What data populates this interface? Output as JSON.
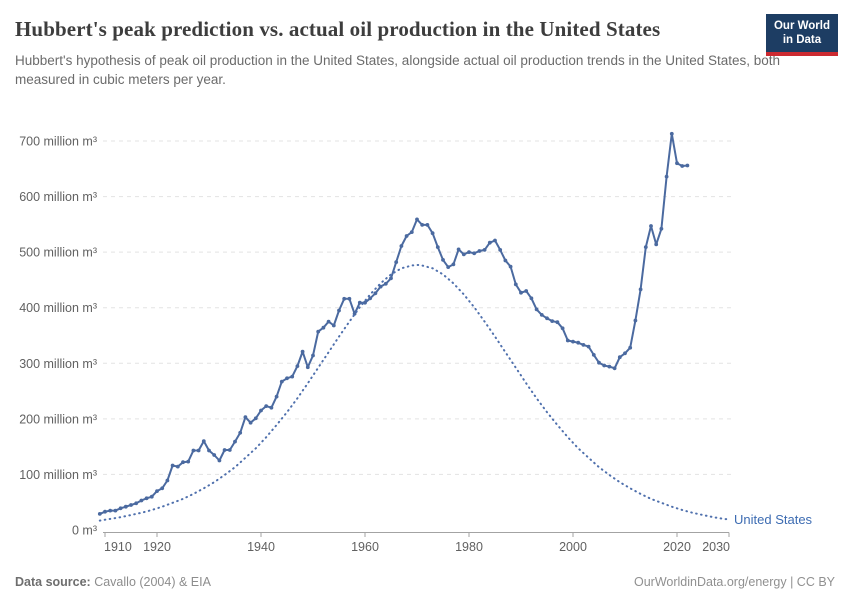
{
  "header": {
    "title": "Hubbert's peak prediction vs. actual oil production in the United States",
    "subtitle": "Hubbert's hypothesis of peak oil production in the United States, alongside actual oil production trends in the United States, both measured in cubic meters per year."
  },
  "logo": {
    "line1": "Our World",
    "line2": "in Data",
    "bg_color": "#1d3d63",
    "bar_color": "#cc2a31"
  },
  "footer": {
    "source_label": "Data source:",
    "source_value": " Cavallo (2004) & EIA",
    "right_text": "OurWorldinData.org/energy | CC BY"
  },
  "chart_data": {
    "type": "line",
    "title": "Hubbert's peak prediction vs. actual oil production in the United States",
    "unit": "cubic meters per year",
    "grid": "horizontal-dashed",
    "legend_position": "end-of-line-label",
    "end_label": "United States",
    "end_label_color": "#3d6cb2",
    "x_scale": {
      "min": 1910,
      "max": 2030
    },
    "y_scale": {
      "min": 0,
      "max": 700
    },
    "x_ticks": [
      1910,
      1920,
      1940,
      1960,
      1980,
      2000,
      2020,
      2030
    ],
    "y_ticks": [
      {
        "value": 0,
        "label": "0 m³"
      },
      {
        "value": 100,
        "label": "100 million m³"
      },
      {
        "value": 200,
        "label": "200 million m³"
      },
      {
        "value": 300,
        "label": "300 million m³"
      },
      {
        "value": 400,
        "label": "400 million m³"
      },
      {
        "value": 500,
        "label": "500 million m³"
      },
      {
        "value": 600,
        "label": "600 million m³"
      },
      {
        "value": 700,
        "label": "700 million m³"
      }
    ],
    "series": [
      {
        "name": "United States actual oil production",
        "style": "solid-markers",
        "color": "#4b6aa0",
        "points": [
          [
            1909,
            29
          ],
          [
            1910,
            33
          ],
          [
            1911,
            35
          ],
          [
            1912,
            35
          ],
          [
            1913,
            39
          ],
          [
            1914,
            42
          ],
          [
            1915,
            45
          ],
          [
            1916,
            48
          ],
          [
            1917,
            53
          ],
          [
            1918,
            57
          ],
          [
            1919,
            60
          ],
          [
            1920,
            70
          ],
          [
            1921,
            75
          ],
          [
            1922,
            89
          ],
          [
            1923,
            116
          ],
          [
            1924,
            114
          ],
          [
            1925,
            122
          ],
          [
            1926,
            123
          ],
          [
            1927,
            143
          ],
          [
            1928,
            143
          ],
          [
            1929,
            160
          ],
          [
            1930,
            143
          ],
          [
            1931,
            135
          ],
          [
            1932,
            125
          ],
          [
            1933,
            144
          ],
          [
            1934,
            144
          ],
          [
            1935,
            159
          ],
          [
            1936,
            175
          ],
          [
            1937,
            203
          ],
          [
            1938,
            193
          ],
          [
            1939,
            201
          ],
          [
            1940,
            215
          ],
          [
            1941,
            223
          ],
          [
            1942,
            220
          ],
          [
            1943,
            240
          ],
          [
            1944,
            267
          ],
          [
            1945,
            273
          ],
          [
            1946,
            276
          ],
          [
            1947,
            295
          ],
          [
            1948,
            321
          ],
          [
            1949,
            293
          ],
          [
            1950,
            314
          ],
          [
            1951,
            357
          ],
          [
            1952,
            364
          ],
          [
            1953,
            375
          ],
          [
            1954,
            368
          ],
          [
            1955,
            395
          ],
          [
            1956,
            416
          ],
          [
            1957,
            416
          ],
          [
            1958,
            389
          ],
          [
            1959,
            409
          ],
          [
            1960,
            409
          ],
          [
            1961,
            417
          ],
          [
            1962,
            426
          ],
          [
            1963,
            438
          ],
          [
            1964,
            443
          ],
          [
            1965,
            453
          ],
          [
            1966,
            482
          ],
          [
            1967,
            511
          ],
          [
            1968,
            529
          ],
          [
            1969,
            536
          ],
          [
            1970,
            559
          ],
          [
            1971,
            549
          ],
          [
            1972,
            549
          ],
          [
            1973,
            534
          ],
          [
            1974,
            509
          ],
          [
            1975,
            486
          ],
          [
            1976,
            473
          ],
          [
            1977,
            478
          ],
          [
            1978,
            505
          ],
          [
            1979,
            496
          ],
          [
            1980,
            500
          ],
          [
            1981,
            498
          ],
          [
            1982,
            502
          ],
          [
            1983,
            504
          ],
          [
            1984,
            517
          ],
          [
            1985,
            521
          ],
          [
            1986,
            504
          ],
          [
            1987,
            485
          ],
          [
            1988,
            474
          ],
          [
            1989,
            442
          ],
          [
            1990,
            427
          ],
          [
            1991,
            430
          ],
          [
            1992,
            417
          ],
          [
            1993,
            397
          ],
          [
            1994,
            387
          ],
          [
            1995,
            381
          ],
          [
            1996,
            376
          ],
          [
            1997,
            374
          ],
          [
            1998,
            363
          ],
          [
            1999,
            341
          ],
          [
            2000,
            339
          ],
          [
            2001,
            337
          ],
          [
            2002,
            333
          ],
          [
            2003,
            330
          ],
          [
            2004,
            315
          ],
          [
            2005,
            301
          ],
          [
            2006,
            296
          ],
          [
            2007,
            294
          ],
          [
            2008,
            291
          ],
          [
            2009,
            311
          ],
          [
            2010,
            318
          ],
          [
            2011,
            328
          ],
          [
            2012,
            377
          ],
          [
            2013,
            433
          ],
          [
            2014,
            509
          ],
          [
            2015,
            547
          ],
          [
            2016,
            514
          ],
          [
            2017,
            542
          ],
          [
            2018,
            636
          ],
          [
            2019,
            713
          ],
          [
            2020,
            660
          ],
          [
            2021,
            655
          ],
          [
            2022,
            656
          ]
        ]
      },
      {
        "name": "Hubbert's peak prediction",
        "style": "dotted",
        "color": "#4f70ad",
        "points": [
          [
            1909,
            17
          ],
          [
            1911,
            20
          ],
          [
            1913,
            23
          ],
          [
            1915,
            27
          ],
          [
            1917,
            31
          ],
          [
            1919,
            36
          ],
          [
            1921,
            42
          ],
          [
            1923,
            49
          ],
          [
            1925,
            56
          ],
          [
            1927,
            65
          ],
          [
            1929,
            75
          ],
          [
            1931,
            86
          ],
          [
            1933,
            99
          ],
          [
            1935,
            113
          ],
          [
            1937,
            130
          ],
          [
            1939,
            147
          ],
          [
            1941,
            167
          ],
          [
            1943,
            189
          ],
          [
            1945,
            212
          ],
          [
            1947,
            237
          ],
          [
            1949,
            264
          ],
          [
            1951,
            292
          ],
          [
            1953,
            320
          ],
          [
            1955,
            348
          ],
          [
            1957,
            375
          ],
          [
            1959,
            401
          ],
          [
            1961,
            424
          ],
          [
            1963,
            444
          ],
          [
            1965,
            460
          ],
          [
            1967,
            471
          ],
          [
            1969,
            476
          ],
          [
            1970,
            477
          ],
          [
            1971,
            476
          ],
          [
            1973,
            471
          ],
          [
            1975,
            460
          ],
          [
            1977,
            444
          ],
          [
            1979,
            424
          ],
          [
            1981,
            401
          ],
          [
            1983,
            375
          ],
          [
            1985,
            348
          ],
          [
            1987,
            320
          ],
          [
            1989,
            292
          ],
          [
            1991,
            264
          ],
          [
            1993,
            237
          ],
          [
            1995,
            212
          ],
          [
            1997,
            189
          ],
          [
            1999,
            167
          ],
          [
            2001,
            147
          ],
          [
            2003,
            130
          ],
          [
            2005,
            113
          ],
          [
            2007,
            99
          ],
          [
            2009,
            86
          ],
          [
            2011,
            75
          ],
          [
            2013,
            65
          ],
          [
            2015,
            56
          ],
          [
            2017,
            49
          ],
          [
            2019,
            42
          ],
          [
            2021,
            36
          ],
          [
            2023,
            31
          ],
          [
            2025,
            27
          ],
          [
            2027,
            23
          ],
          [
            2029,
            20
          ],
          [
            2030,
            19
          ]
        ]
      }
    ]
  }
}
